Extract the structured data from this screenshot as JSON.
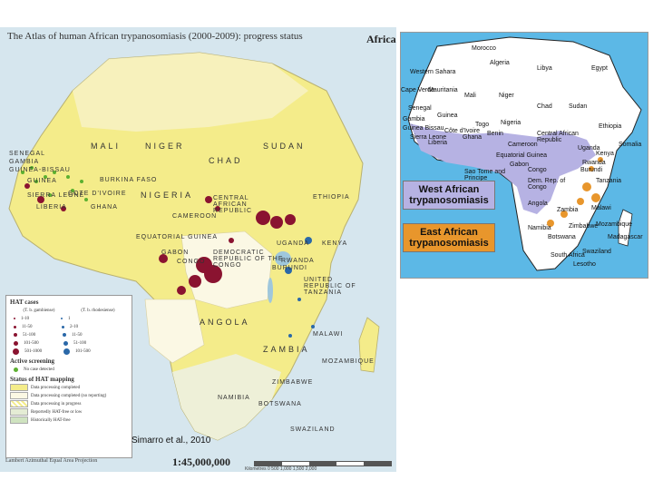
{
  "left_map": {
    "title": "The Atlas of human African trypanosomiasis (2000-2009): progress status",
    "corner_label": "Africa",
    "countries": [
      "MALI",
      "NIGER",
      "CHAD",
      "SUDAN",
      "SENEGAL",
      "GAMBIA",
      "GUINEA-BISSAU",
      "GUINEA",
      "SIERRA LEONE",
      "LIBERIA",
      "COTE D'IVOIRE",
      "GHANA",
      "BURKINA FASO",
      "NIGERIA",
      "CAMEROON",
      "CENTRAL AFRICAN REPUBLIC",
      "ETHIOPIA",
      "EQUATORIAL GUINEA",
      "GABON",
      "CONGO",
      "DEMOCRATIC REPUBLIC OF THE CONGO",
      "UGANDA",
      "KENYA",
      "RWANDA",
      "BURUNDI",
      "UNITED REPUBLIC OF TANZANIA",
      "ANGOLA",
      "ZAMBIA",
      "MALAWI",
      "MOZAMBIQUE",
      "ZIMBABWE",
      "NAMIBIA",
      "BOTSWANA",
      "SWAZILAND"
    ],
    "legend": {
      "heading": "HAT cases",
      "cols": [
        "(T. b. gambiense)",
        "(T. b. rhodesiense)"
      ],
      "gambiense_classes": [
        "1-10",
        "11-50",
        "51-100",
        "101-500",
        "501-1000"
      ],
      "rhodesiense_classes": [
        "1",
        "2-10",
        "11-50",
        "51-100",
        "101-500"
      ],
      "active_heading": "Active screening",
      "active_item": "No case detected",
      "status_heading": "Status of HAT mapping",
      "status_items": [
        "Data processing completed",
        "Data processing completed (no reporting)",
        "Data processing in progress",
        "Reportedly HAT-free or low",
        "Historically HAT-free"
      ]
    },
    "citation": "Simarro et al., 2010",
    "scale": "1:45,000,000",
    "projection": "Lambert Azimuthal Equal Area Projection",
    "scalebar_label": "Kilometres 0   500   1,000   1,500   2,000"
  },
  "right_map": {
    "countries": [
      "Morocco",
      "Algeria",
      "Libya",
      "Egypt",
      "Western Sahara",
      "Mauritania",
      "Mali",
      "Niger",
      "Chad",
      "Sudan",
      "Cape Verde",
      "Senegal",
      "Gambia",
      "Guinea Bissau",
      "Guinea",
      "Sierra Leone",
      "Liberia",
      "Côte d'Ivoire",
      "Ghana",
      "Togo",
      "Benin",
      "Nigeria",
      "Cameroon",
      "Central African Republic",
      "Ethiopia",
      "Somalia",
      "Kenya",
      "Uganda",
      "Equatorial Guinea",
      "Gabon",
      "Congo",
      "Sao Tome and Principe",
      "Dem. Rep. of Congo",
      "Rwanda",
      "Burundi",
      "Tanzania",
      "Angola",
      "Zambia",
      "Malawi",
      "Mozambique",
      "Zimbabwe",
      "Namibia",
      "Botswana",
      "South Africa",
      "Swaziland",
      "Lesotho",
      "Madagascar"
    ],
    "key_west": "West African trypanosomiasis",
    "key_east": "East African trypanosomiasis",
    "colors": {
      "west": "#b6b2e3",
      "east": "#e8962c",
      "land": "#ffffff",
      "sea": "#5cb8e6"
    }
  }
}
